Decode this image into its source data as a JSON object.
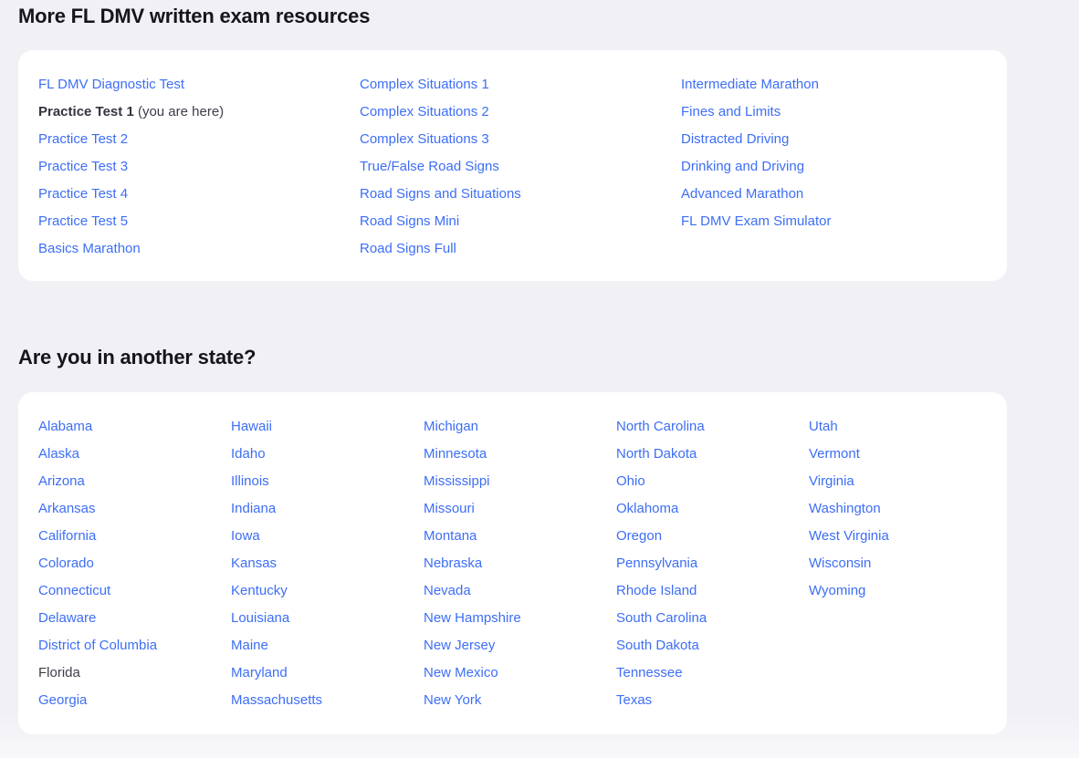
{
  "colors": {
    "page_background": "#f0f0f5",
    "card_background": "#ffffff",
    "link_blue": "#3d6ef5",
    "heading_text": "#17141c",
    "current_item_text": "#3f3c48"
  },
  "resources_section": {
    "heading": "More FL DMV written exam resources",
    "columns": [
      {
        "items": [
          {
            "type": "link",
            "label": "FL DMV Diagnostic Test"
          },
          {
            "type": "current",
            "bold": true,
            "label": "Practice Test 1",
            "suffix": "(you are here)"
          },
          {
            "type": "link",
            "label": "Practice Test 2"
          },
          {
            "type": "link",
            "label": "Practice Test 3"
          },
          {
            "type": "link",
            "label": "Practice Test 4"
          },
          {
            "type": "link",
            "label": "Practice Test 5"
          },
          {
            "type": "link",
            "label": "Basics Marathon"
          }
        ]
      },
      {
        "items": [
          {
            "type": "link",
            "label": "Complex Situations 1"
          },
          {
            "type": "link",
            "label": "Complex Situations 2"
          },
          {
            "type": "link",
            "label": "Complex Situations 3"
          },
          {
            "type": "link",
            "label": "True/False Road Signs"
          },
          {
            "type": "link",
            "label": "Road Signs and Situations"
          },
          {
            "type": "link",
            "label": "Road Signs Mini"
          },
          {
            "type": "link",
            "label": "Road Signs Full"
          }
        ]
      },
      {
        "items": [
          {
            "type": "link",
            "label": "Intermediate Marathon"
          },
          {
            "type": "link",
            "label": "Fines and Limits"
          },
          {
            "type": "link",
            "label": "Distracted Driving"
          },
          {
            "type": "link",
            "label": "Drinking and Driving"
          },
          {
            "type": "link",
            "label": "Advanced Marathon"
          },
          {
            "type": "link",
            "label": "FL DMV Exam Simulator"
          }
        ]
      }
    ]
  },
  "states_section": {
    "heading": "Are you in another state?",
    "columns": [
      {
        "items": [
          {
            "type": "link",
            "label": "Alabama"
          },
          {
            "type": "link",
            "label": "Alaska"
          },
          {
            "type": "link",
            "label": "Arizona"
          },
          {
            "type": "link",
            "label": "Arkansas"
          },
          {
            "type": "link",
            "label": "California"
          },
          {
            "type": "link",
            "label": "Colorado"
          },
          {
            "type": "link",
            "label": "Connecticut"
          },
          {
            "type": "link",
            "label": "Delaware"
          },
          {
            "type": "link",
            "label": "District of Columbia"
          },
          {
            "type": "current",
            "label": "Florida"
          },
          {
            "type": "link",
            "label": "Georgia"
          }
        ]
      },
      {
        "items": [
          {
            "type": "link",
            "label": "Hawaii"
          },
          {
            "type": "link",
            "label": "Idaho"
          },
          {
            "type": "link",
            "label": "Illinois"
          },
          {
            "type": "link",
            "label": "Indiana"
          },
          {
            "type": "link",
            "label": "Iowa"
          },
          {
            "type": "link",
            "label": "Kansas"
          },
          {
            "type": "link",
            "label": "Kentucky"
          },
          {
            "type": "link",
            "label": "Louisiana"
          },
          {
            "type": "link",
            "label": "Maine"
          },
          {
            "type": "link",
            "label": "Maryland"
          },
          {
            "type": "link",
            "label": "Massachusetts"
          }
        ]
      },
      {
        "items": [
          {
            "type": "link",
            "label": "Michigan"
          },
          {
            "type": "link",
            "label": "Minnesota"
          },
          {
            "type": "link",
            "label": "Mississippi"
          },
          {
            "type": "link",
            "label": "Missouri"
          },
          {
            "type": "link",
            "label": "Montana"
          },
          {
            "type": "link",
            "label": "Nebraska"
          },
          {
            "type": "link",
            "label": "Nevada"
          },
          {
            "type": "link",
            "label": "New Hampshire"
          },
          {
            "type": "link",
            "label": "New Jersey"
          },
          {
            "type": "link",
            "label": "New Mexico"
          },
          {
            "type": "link",
            "label": "New York"
          }
        ]
      },
      {
        "items": [
          {
            "type": "link",
            "label": "North Carolina"
          },
          {
            "type": "link",
            "label": "North Dakota"
          },
          {
            "type": "link",
            "label": "Ohio"
          },
          {
            "type": "link",
            "label": "Oklahoma"
          },
          {
            "type": "link",
            "label": "Oregon"
          },
          {
            "type": "link",
            "label": "Pennsylvania"
          },
          {
            "type": "link",
            "label": "Rhode Island"
          },
          {
            "type": "link",
            "label": "South Carolina"
          },
          {
            "type": "link",
            "label": "South Dakota"
          },
          {
            "type": "link",
            "label": "Tennessee"
          },
          {
            "type": "link",
            "label": "Texas"
          }
        ]
      },
      {
        "items": [
          {
            "type": "link",
            "label": "Utah"
          },
          {
            "type": "link",
            "label": "Vermont"
          },
          {
            "type": "link",
            "label": "Virginia"
          },
          {
            "type": "link",
            "label": "Washington"
          },
          {
            "type": "link",
            "label": "West Virginia"
          },
          {
            "type": "link",
            "label": "Wisconsin"
          },
          {
            "type": "link",
            "label": "Wyoming"
          }
        ]
      }
    ]
  }
}
